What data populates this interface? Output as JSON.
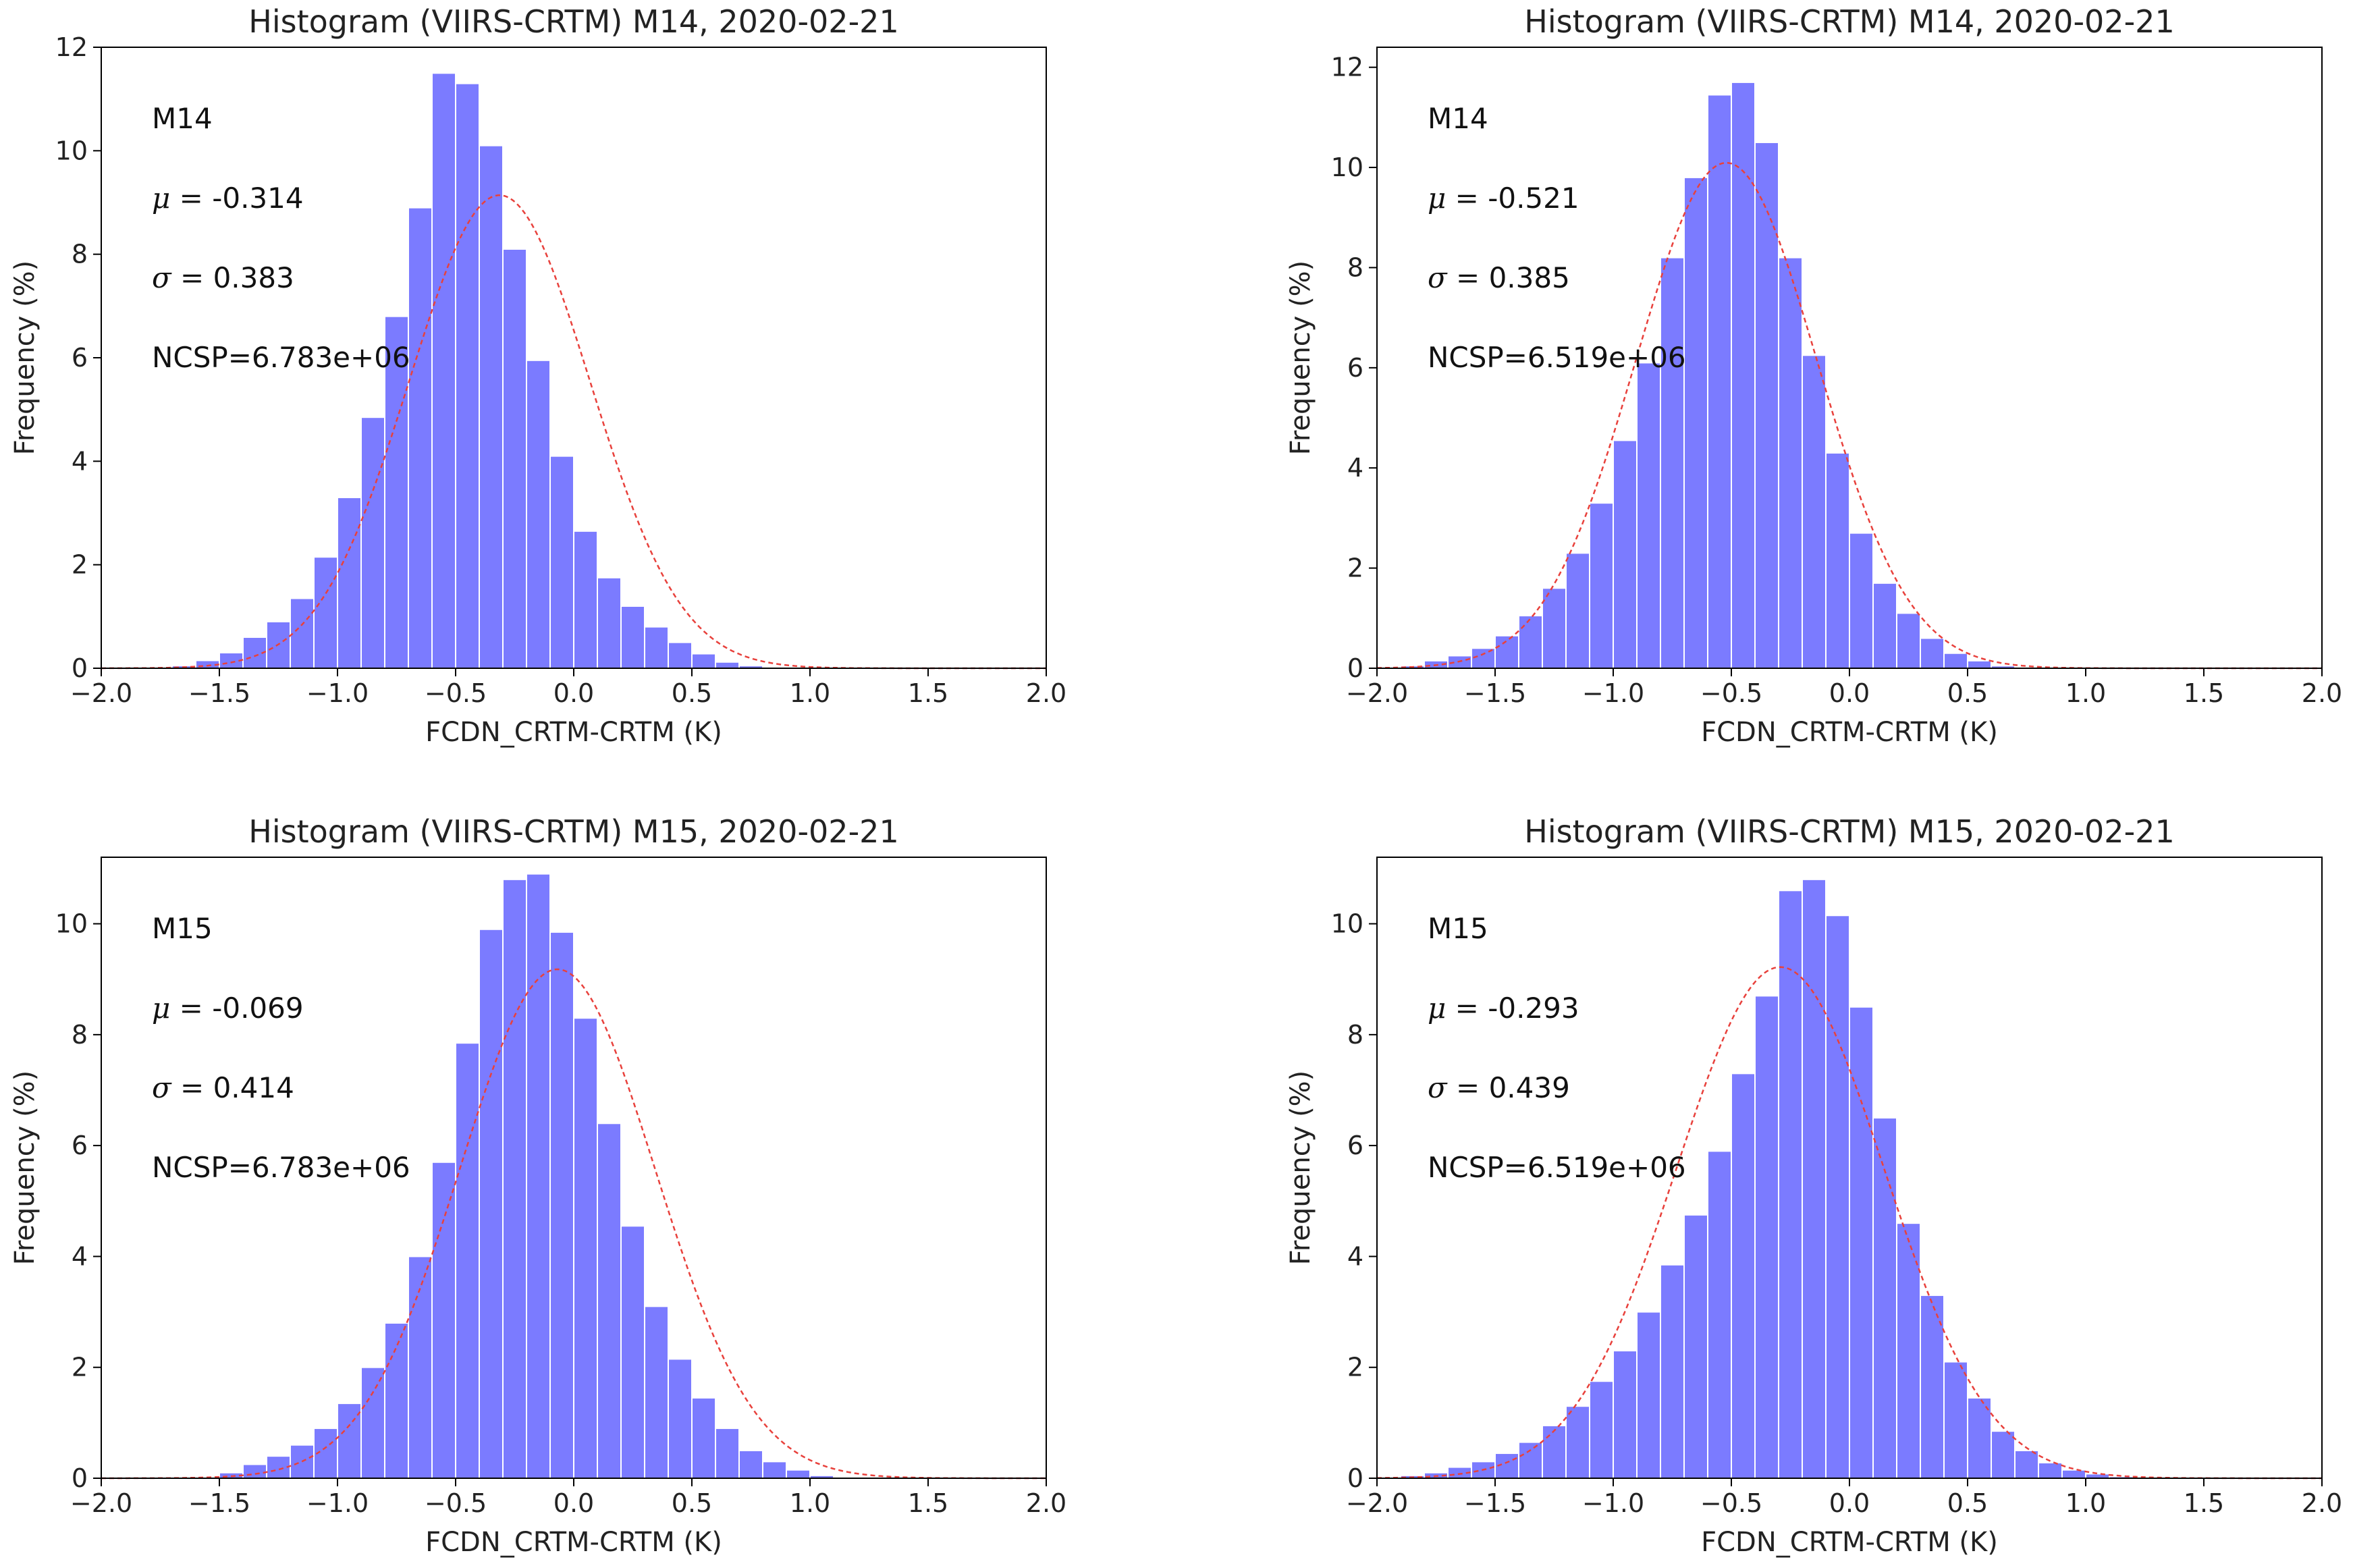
{
  "chart_data": [
    {
      "type": "bar",
      "title": "Histogram (VIIRS-CRTM) M14, 2020-02-21",
      "xlabel": "FCDN_CRTM-CRTM (K)",
      "ylabel": "Frequency (%)",
      "xlim": [
        -2.0,
        2.0
      ],
      "ylim": [
        0,
        12
      ],
      "xticks": [
        -2.0,
        -1.5,
        -1.0,
        -0.5,
        0.0,
        0.5,
        1.0,
        1.5,
        2.0
      ],
      "yticks": [
        0,
        2,
        4,
        6,
        8,
        10,
        12
      ],
      "band": "M14",
      "mu_label": "μ =",
      "mu": "-0.314",
      "sigma_label": "σ =",
      "sigma": "0.383",
      "ncsp": "NCSP=6.783e+06",
      "bin_start": -1.7,
      "bin_width": 0.1,
      "values": [
        0.05,
        0.15,
        0.3,
        0.6,
        0.9,
        1.35,
        2.15,
        3.3,
        4.85,
        6.8,
        8.9,
        11.5,
        11.3,
        10.1,
        8.1,
        5.95,
        4.1,
        2.65,
        1.75,
        1.2,
        0.8,
        0.5,
        0.28,
        0.12,
        0.05
      ]
    },
    {
      "type": "bar",
      "title": "Histogram (VIIRS-CRTM) M14, 2020-02-21",
      "xlabel": "FCDN_CRTM-CRTM (K)",
      "ylabel": "Frequency (%)",
      "xlim": [
        -2.0,
        2.0
      ],
      "ylim": [
        0,
        12.4
      ],
      "xticks": [
        -2.0,
        -1.5,
        -1.0,
        -0.5,
        0.0,
        0.5,
        1.0,
        1.5,
        2.0
      ],
      "yticks": [
        0,
        2,
        4,
        6,
        8,
        10,
        12
      ],
      "band": "M14",
      "mu_label": "μ =",
      "mu": "-0.521",
      "sigma_label": "σ =",
      "sigma": "0.385",
      "ncsp": "NCSP=6.519e+06",
      "bin_start": -1.9,
      "bin_width": 0.1,
      "values": [
        0.05,
        0.15,
        0.25,
        0.4,
        0.65,
        1.05,
        1.6,
        2.3,
        3.3,
        4.55,
        6.1,
        8.2,
        9.8,
        11.45,
        11.7,
        10.5,
        8.2,
        6.25,
        4.3,
        2.7,
        1.7,
        1.1,
        0.6,
        0.3,
        0.15,
        0.05
      ]
    },
    {
      "type": "bar",
      "title": "Histogram (VIIRS-CRTM) M15, 2020-02-21",
      "xlabel": "FCDN_CRTM-CRTM (K)",
      "ylabel": "Frequency (%)",
      "xlim": [
        -2.0,
        2.0
      ],
      "ylim": [
        0,
        11.2
      ],
      "xticks": [
        -2.0,
        -1.5,
        -1.0,
        -0.5,
        0.0,
        0.5,
        1.0,
        1.5,
        2.0
      ],
      "yticks": [
        0,
        2,
        4,
        6,
        8,
        10
      ],
      "band": "M15",
      "mu_label": "μ =",
      "mu": "-0.069",
      "sigma_label": "σ =",
      "sigma": "0.414",
      "ncsp": "NCSP=6.783e+06",
      "bin_start": -1.5,
      "bin_width": 0.1,
      "values": [
        0.1,
        0.25,
        0.4,
        0.6,
        0.9,
        1.35,
        2.0,
        2.8,
        4.0,
        5.7,
        7.85,
        9.9,
        10.8,
        10.9,
        9.85,
        8.3,
        6.4,
        4.55,
        3.1,
        2.15,
        1.45,
        0.9,
        0.5,
        0.3,
        0.15,
        0.05
      ]
    },
    {
      "type": "bar",
      "title": "Histogram (VIIRS-CRTM) M15, 2020-02-21",
      "xlabel": "FCDN_CRTM-CRTM (K)",
      "ylabel": "Frequency (%)",
      "xlim": [
        -2.0,
        2.0
      ],
      "ylim": [
        0,
        11.2
      ],
      "xticks": [
        -2.0,
        -1.5,
        -1.0,
        -0.5,
        0.0,
        0.5,
        1.0,
        1.5,
        2.0
      ],
      "yticks": [
        0,
        2,
        4,
        6,
        8,
        10
      ],
      "band": "M15",
      "mu_label": "μ =",
      "mu": "-0.293",
      "sigma_label": "σ =",
      "sigma": "0.439",
      "ncsp": "NCSP=6.519e+06",
      "bin_start": -1.9,
      "bin_width": 0.1,
      "values": [
        0.05,
        0.1,
        0.2,
        0.3,
        0.45,
        0.65,
        0.95,
        1.3,
        1.75,
        2.3,
        3.0,
        3.85,
        4.75,
        5.9,
        7.3,
        8.7,
        10.6,
        10.8,
        10.15,
        8.5,
        6.5,
        4.6,
        3.3,
        2.1,
        1.45,
        0.85,
        0.5,
        0.28,
        0.15,
        0.08,
        0.03
      ]
    }
  ]
}
